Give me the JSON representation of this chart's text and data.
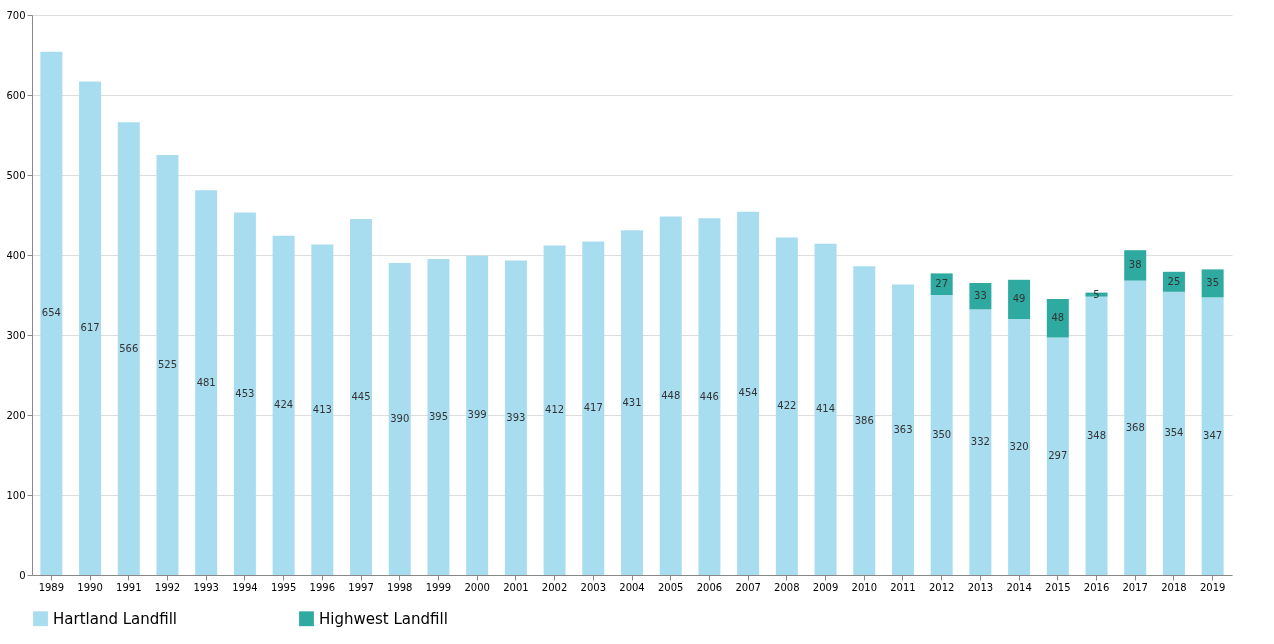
{
  "chart_data": {
    "type": "bar",
    "stacked": true,
    "categories": [
      "1989",
      "1990",
      "1991",
      "1992",
      "1993",
      "1994",
      "1995",
      "1996",
      "1997",
      "1998",
      "1999",
      "2000",
      "2001",
      "2002",
      "2003",
      "2004",
      "2005",
      "2006",
      "2007",
      "2008",
      "2009",
      "2010",
      "2011",
      "2012",
      "2013",
      "2014",
      "2015",
      "2016",
      "2017",
      "2018",
      "2019"
    ],
    "series": [
      {
        "name": "Hartland Landfill",
        "color": "#a8ddf0",
        "values": [
          654,
          617,
          566,
          525,
          481,
          453,
          424,
          413,
          445,
          390,
          395,
          399,
          393,
          412,
          417,
          431,
          448,
          446,
          454,
          422,
          414,
          386,
          363,
          350,
          332,
          320,
          297,
          348,
          368,
          354,
          347
        ]
      },
      {
        "name": "Highwest Landfill",
        "color": "#2eaaa0",
        "values": [
          null,
          null,
          null,
          null,
          null,
          null,
          null,
          null,
          null,
          null,
          null,
          null,
          null,
          null,
          null,
          null,
          null,
          null,
          null,
          null,
          null,
          null,
          null,
          27,
          33,
          49,
          48,
          5,
          38,
          25,
          35
        ]
      }
    ],
    "ylim": [
      0,
      700
    ],
    "yticks": [
      0,
      100,
      200,
      300,
      400,
      500,
      600,
      700
    ],
    "grid": "y",
    "legend": "bottom",
    "data_labels": true
  }
}
